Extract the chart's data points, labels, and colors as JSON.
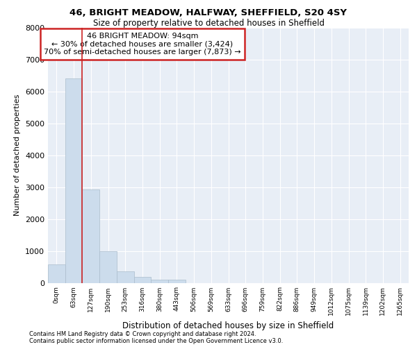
{
  "title_line1": "46, BRIGHT MEADOW, HALFWAY, SHEFFIELD, S20 4SY",
  "title_line2": "Size of property relative to detached houses in Sheffield",
  "xlabel": "Distribution of detached houses by size in Sheffield",
  "ylabel": "Number of detached properties",
  "bar_labels": [
    "0sqm",
    "63sqm",
    "127sqm",
    "190sqm",
    "253sqm",
    "316sqm",
    "380sqm",
    "443sqm",
    "506sqm",
    "569sqm",
    "633sqm",
    "696sqm",
    "759sqm",
    "822sqm",
    "886sqm",
    "949sqm",
    "1012sqm",
    "1075sqm",
    "1139sqm",
    "1202sqm",
    "1265sqm"
  ],
  "bar_values": [
    570,
    6420,
    2920,
    980,
    360,
    175,
    100,
    90,
    0,
    0,
    0,
    0,
    0,
    0,
    0,
    0,
    0,
    0,
    0,
    0,
    0
  ],
  "bar_color": "#ccdcec",
  "bar_edge_color": "#aabccc",
  "vline_x": 1.5,
  "vline_color": "#cc2222",
  "ylim": [
    0,
    8000
  ],
  "yticks": [
    0,
    1000,
    2000,
    3000,
    4000,
    5000,
    6000,
    7000,
    8000
  ],
  "annotation_text": "46 BRIGHT MEADOW: 94sqm\n← 30% of detached houses are smaller (3,424)\n70% of semi-detached houses are larger (7,873) →",
  "annotation_box_color": "#ffffff",
  "annotation_box_edge": "#cc2222",
  "bg_color": "#e8eef6",
  "footer_line1": "Contains HM Land Registry data © Crown copyright and database right 2024.",
  "footer_line2": "Contains public sector information licensed under the Open Government Licence v3.0."
}
